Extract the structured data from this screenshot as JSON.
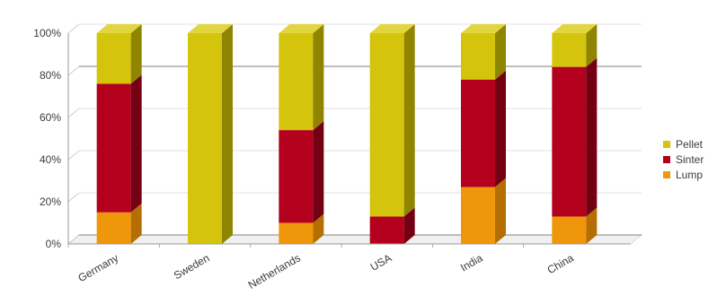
{
  "chart_data": {
    "type": "bar",
    "stacked": true,
    "percent": true,
    "three_d": true,
    "categories": [
      "Germany",
      "Sweden",
      "Netherlands",
      "USA",
      "India",
      "China"
    ],
    "series": [
      {
        "name": "Lump",
        "color": "#f0960a",
        "side": "#b56e00",
        "top": "#f6b84a",
        "values": [
          15,
          0,
          10,
          0,
          27,
          13
        ]
      },
      {
        "name": "Sinter",
        "color": "#b2001d",
        "side": "#740013",
        "top": "#cc3348",
        "values": [
          61,
          0,
          44,
          13,
          51,
          71
        ]
      },
      {
        "name": "Pellet",
        "color": "#d4c40c",
        "side": "#8f8500",
        "top": "#e2d640",
        "values": [
          24,
          100,
          46,
          87,
          22,
          16
        ]
      }
    ],
    "y_ticks": [
      "0%",
      "20%",
      "40%",
      "60%",
      "80%",
      "100%"
    ],
    "ylim": [
      0,
      100
    ],
    "grid": true,
    "legend": {
      "position": "right",
      "order": [
        "Pellet",
        "Sinter",
        "Lump"
      ]
    },
    "title": "",
    "xlabel": "",
    "ylabel": ""
  }
}
